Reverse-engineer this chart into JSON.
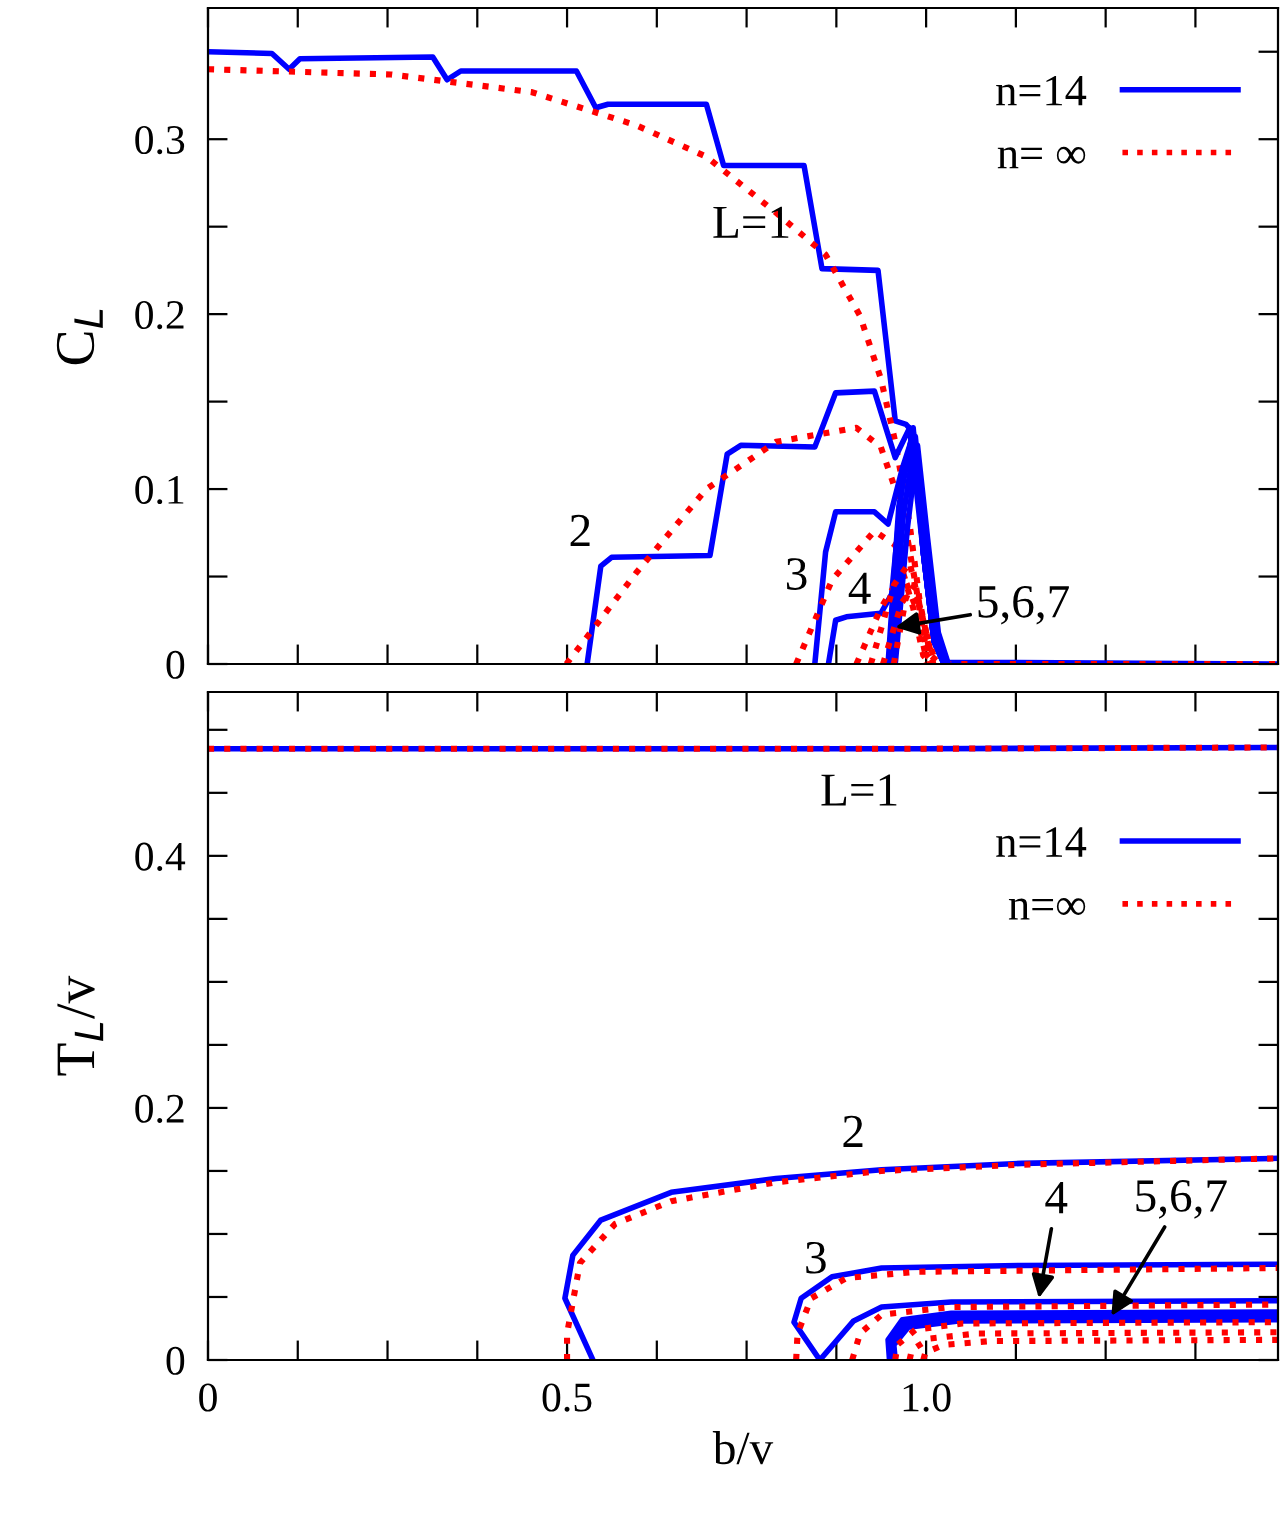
{
  "chart_data": [
    {
      "type": "line",
      "ylabel": "C$_{L}$",
      "xlim": [
        0,
        1.49
      ],
      "ylim": [
        0,
        0.375
      ],
      "tick_labels": "y",
      "legend": "top right",
      "grid": false,
      "xticks": [
        {
          "value": 0,
          "label": null
        },
        {
          "value": 0.125,
          "label": null
        },
        {
          "value": 0.25,
          "label": null
        },
        {
          "value": 0.375,
          "label": null
        },
        {
          "value": 0.5,
          "label": null
        },
        {
          "value": 0.625,
          "label": null
        },
        {
          "value": 0.75,
          "label": null
        },
        {
          "value": 0.875,
          "label": null
        },
        {
          "value": 1.0,
          "label": null
        },
        {
          "value": 1.125,
          "label": null
        },
        {
          "value": 1.25,
          "label": null
        },
        {
          "value": 1.375,
          "label": null
        }
      ],
      "yticks": [
        0,
        {
          "value": 0.05,
          "label": null
        },
        0.1,
        {
          "value": 0.15,
          "label": null
        },
        0.2,
        {
          "value": 0.25,
          "label": null
        },
        0.3,
        {
          "value": 0.35,
          "label": null
        }
      ],
      "annotations": [
        "L=1",
        "2",
        "3",
        "4",
        {
          "text": "5,6,7",
          "x": 0.957,
          "y": 0.021
        }
      ],
      "series": [
        {
          "name": "n=14",
          "color": "#0000ff",
          "line_style": "solid",
          "x": [
            0,
            0.089,
            0.113,
            0.128,
            0.313,
            0.333,
            0.352,
            0.513,
            0.54,
            0.557,
            0.694,
            0.718,
            0.83,
            0.855,
            0.933,
            0.957,
            0.972,
            0.981,
            0.996,
            1.011,
            1.025,
            1.49
          ],
          "values": [
            0.35,
            0.349,
            0.34,
            0.346,
            0.347,
            0.334,
            0.339,
            0.339,
            0.318,
            0.32,
            0.32,
            0.285,
            0.285,
            0.226,
            0.225,
            0.139,
            0.137,
            0.133,
            0.064,
            0.013,
            0.001,
            0
          ]
        },
        {
          "name": "n= ∞",
          "color": "#ff0000",
          "line_style": "dotted",
          "x": [
            0,
            0.255,
            0.45,
            0.596,
            0.694,
            0.791,
            0.86,
            0.908,
            0.937,
            0.957,
            0.977,
            0.991,
            1.006,
            1.02,
            1.49
          ],
          "values": [
            0.34,
            0.337,
            0.327,
            0.308,
            0.29,
            0.258,
            0.234,
            0.199,
            0.163,
            0.127,
            0.08,
            0.036,
            0.005,
            0,
            0
          ]
        },
        {
          "color": "#0000ff",
          "line_style": "solid",
          "x": [
            0.528,
            0.547,
            0.562,
            0.699,
            0.723,
            0.742,
            0.845,
            0.874,
            0.928,
            0.947,
            0.957,
            0.977,
            0.996,
            1.011,
            1.025
          ],
          "values": [
            0,
            0.056,
            0.061,
            0.062,
            0.12,
            0.125,
            0.124,
            0.155,
            0.156,
            0.131,
            0.118,
            0.135,
            0.064,
            0.013,
            0
          ]
        },
        {
          "color": "#ff0000",
          "line_style": "dotted",
          "x": [
            0.499,
            0.596,
            0.694,
            0.791,
            0.903,
            0.937,
            0.967,
            0.986,
            1.001,
            1.011
          ],
          "values": [
            0,
            0.052,
            0.1,
            0.127,
            0.135,
            0.124,
            0.088,
            0.044,
            0.005,
            0
          ]
        },
        {
          "color": "#0000ff",
          "line_style": "solid",
          "x": [
            0.845,
            0.86,
            0.874,
            0.928,
            0.947,
            0.967,
            0.982,
            0.996,
            1.011,
            1.025
          ],
          "values": [
            0,
            0.064,
            0.087,
            0.087,
            0.08,
            0.112,
            0.131,
            0.064,
            0.013,
            0
          ]
        },
        {
          "color": "#ff0000",
          "line_style": "dotted",
          "x": [
            0.819,
            0.869,
            0.928,
            0.957,
            0.982,
            0.996,
            1.006
          ],
          "values": [
            0,
            0.048,
            0.076,
            0.068,
            0.032,
            0.005,
            0
          ]
        },
        {
          "color": "#0000ff",
          "line_style": "solid",
          "x": [
            0.864,
            0.874,
            0.889,
            0.937,
            0.952,
            0.967,
            0.982,
            0.996,
            1.011,
            1.025
          ],
          "values": [
            0,
            0.025,
            0.027,
            0.029,
            0.04,
            0.104,
            0.133,
            0.064,
            0.013,
            0
          ]
        },
        {
          "color": "#ff0000",
          "line_style": "dotted",
          "x": [
            0.903,
            0.937,
            0.967,
            0.986,
            1.001
          ],
          "values": [
            0,
            0.032,
            0.052,
            0.032,
            0.001
          ]
        },
        {
          "color": "#0000ff",
          "line_style": "solid",
          "x": [
            0.947,
            0.962,
            0.982,
            0.996,
            1.011,
            1.025
          ],
          "values": [
            0,
            0.09,
            0.135,
            0.064,
            0.013,
            0
          ]
        },
        {
          "color": "#0000ff",
          "line_style": "solid",
          "x": [
            0.952,
            0.968,
            0.985,
            0.999,
            1.014,
            1.028
          ],
          "values": [
            0,
            0.084,
            0.13,
            0.068,
            0.016,
            0
          ]
        },
        {
          "color": "#0000ff",
          "line_style": "solid",
          "x": [
            0.957,
            0.974,
            0.988,
            1.002,
            1.017,
            1.031
          ],
          "values": [
            0,
            0.078,
            0.125,
            0.072,
            0.018,
            0
          ]
        },
        {
          "color": "#ff0000",
          "line_style": "dotted",
          "x": [
            0.923,
            0.955,
            0.977,
            0.993,
            1.006
          ],
          "values": [
            0,
            0.045,
            0.058,
            0.03,
            0
          ]
        },
        {
          "color": "#ff0000",
          "line_style": "dotted",
          "x": [
            0.94,
            0.966,
            0.984,
            0.998,
            1.01
          ],
          "values": [
            0,
            0.035,
            0.045,
            0.022,
            0
          ]
        },
        {
          "color": "#ff0000",
          "line_style": "dotted",
          "x": [
            0.955,
            0.972,
            0.99,
            1.002,
            1.014
          ],
          "values": [
            0,
            0.038,
            0.035,
            0.015,
            0
          ]
        }
      ]
    },
    {
      "type": "line",
      "xlabel": "b/v",
      "ylabel": "T$_{L}$/v",
      "xlim": [
        0,
        1.49
      ],
      "ylim": [
        0,
        0.53
      ],
      "legend": "top right",
      "grid": false,
      "xticks": [
        0,
        {
          "value": 0.125,
          "label": null
        },
        {
          "value": 0.25,
          "label": null
        },
        {
          "value": 0.375,
          "label": null
        },
        0.5,
        {
          "value": 0.625,
          "label": null
        },
        {
          "value": 0.75,
          "label": null
        },
        {
          "value": 0.875,
          "label": null
        },
        {
          "value": 1.0,
          "label": "1.0"
        },
        {
          "value": 1.125,
          "label": null
        },
        {
          "value": 1.25,
          "label": null
        },
        {
          "value": 1.375,
          "label": null
        }
      ],
      "yticks": [
        0,
        {
          "value": 0.05,
          "label": null
        },
        {
          "value": 0.1,
          "label": null
        },
        {
          "value": 0.15,
          "label": null
        },
        0.2,
        {
          "value": 0.25,
          "label": null
        },
        {
          "value": 0.3,
          "label": null
        },
        {
          "value": 0.35,
          "label": null
        },
        0.4,
        {
          "value": 0.45,
          "label": null
        },
        {
          "value": 0.5,
          "label": null
        }
      ],
      "annotations": [
        "L=1",
        "2",
        "3",
        {
          "text": "4",
          "x": 1.157,
          "y": 0.049
        },
        {
          "text": "5,6,7",
          "x": 1.258,
          "y": 0.035
        }
      ],
      "series": [
        {
          "name": "n=14",
          "color": "#0000ff",
          "line_style": "solid",
          "x": [
            0,
            0.5,
            1.0,
            1.49
          ],
          "values": [
            0.485,
            0.485,
            0.485,
            0.486
          ]
        },
        {
          "name": "n=∞",
          "color": "#ff0000",
          "line_style": "dotted",
          "x": [
            0,
            0.5,
            1.0,
            1.49
          ],
          "values": [
            0.485,
            0.485,
            0.485,
            0.486
          ]
        },
        {
          "color": "#0000ff",
          "line_style": "solid",
          "x": [
            0.536,
            0.497,
            0.508,
            0.547,
            0.645,
            0.791,
            0.938,
            1.133,
            1.49
          ],
          "values": [
            0,
            0.049,
            0.083,
            0.111,
            0.133,
            0.144,
            0.151,
            0.156,
            0.16
          ]
        },
        {
          "color": "#ff0000",
          "line_style": "dotted",
          "x": [
            0.5,
            0.5,
            0.518,
            0.567,
            0.645,
            0.791,
            0.938,
            1.133,
            1.49
          ],
          "values": [
            0,
            0.021,
            0.077,
            0.108,
            0.126,
            0.141,
            0.15,
            0.155,
            0.16
          ]
        },
        {
          "color": "#0000ff",
          "line_style": "solid",
          "x": [
            0.852,
            0.816,
            0.826,
            0.869,
            0.938,
            1.133,
            1.49
          ],
          "values": [
            0,
            0.03,
            0.049,
            0.066,
            0.073,
            0.075,
            0.076
          ]
        },
        {
          "color": "#ff0000",
          "line_style": "dotted",
          "x": [
            0.819,
            0.821,
            0.84,
            0.889,
            0.986,
            1.49
          ],
          "values": [
            0,
            0.021,
            0.049,
            0.065,
            0.07,
            0.073
          ]
        },
        {
          "color": "#0000ff",
          "line_style": "solid",
          "x": [
            0.852,
            0.899,
            0.938,
            1.035,
            1.49
          ],
          "values": [
            0,
            0.031,
            0.042,
            0.046,
            0.047
          ]
        },
        {
          "color": "#ff0000",
          "line_style": "dotted",
          "x": [
            0.897,
            0.908,
            0.938,
            1.035,
            1.49
          ],
          "values": [
            0,
            0.021,
            0.036,
            0.042,
            0.044
          ]
        },
        {
          "color": "#0000ff",
          "line_style": "solid",
          "x": [
            0.949,
            0.947,
            0.967,
            1.035,
            1.49
          ],
          "values": [
            0,
            0.016,
            0.032,
            0.037,
            0.038
          ]
        },
        {
          "color": "#0000ff",
          "line_style": "solid",
          "x": [
            0.953,
            0.951,
            0.971,
            1.04,
            1.49
          ],
          "values": [
            0,
            0.014,
            0.029,
            0.034,
            0.035
          ]
        },
        {
          "color": "#0000ff",
          "line_style": "solid",
          "x": [
            0.957,
            0.955,
            0.975,
            1.045,
            1.49
          ],
          "values": [
            0,
            0.012,
            0.026,
            0.031,
            0.032
          ]
        },
        {
          "color": "#ff0000",
          "line_style": "dotted",
          "x": [
            0.957,
            0.96,
            0.985,
            1.05,
            1.49
          ],
          "values": [
            0,
            0.012,
            0.024,
            0.029,
            0.03
          ]
        },
        {
          "color": "#ff0000",
          "line_style": "dotted",
          "x": [
            0.977,
            0.98,
            1.005,
            1.07,
            1.49
          ],
          "values": [
            0,
            0.008,
            0.017,
            0.021,
            0.022
          ]
        },
        {
          "color": "#ff0000",
          "line_style": "dotted",
          "x": [
            0.996,
            0.999,
            1.025,
            1.09,
            1.49
          ],
          "values": [
            0,
            0.006,
            0.012,
            0.015,
            0.016
          ]
        }
      ]
    }
  ]
}
